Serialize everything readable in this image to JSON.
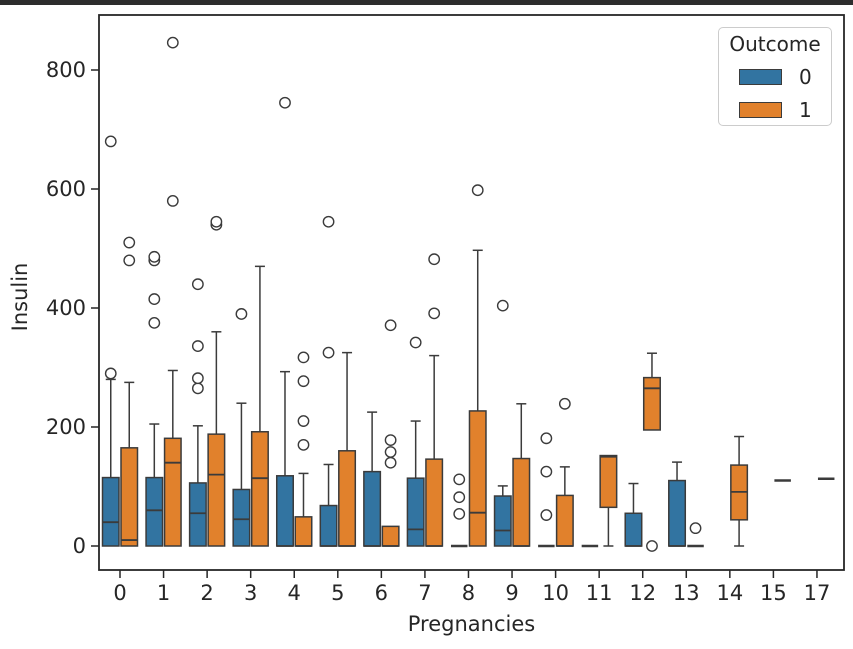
{
  "page": {
    "top_bar_color": "#2d2d2d",
    "background": "#ffffff",
    "text_color": "#262626",
    "edge_color": "#3b3b3b"
  },
  "chart_data": {
    "type": "grouped_boxplot",
    "title": "",
    "xlabel": "Pregnancies",
    "ylabel": "Insulin",
    "categories": [
      "0",
      "1",
      "2",
      "3",
      "4",
      "5",
      "6",
      "7",
      "8",
      "9",
      "10",
      "11",
      "12",
      "13",
      "14",
      "15",
      "17"
    ],
    "y_ticks": [
      0,
      200,
      400,
      600,
      800
    ],
    "ylim": [
      -40,
      892
    ],
    "grid": false,
    "legend": {
      "title": "Outcome",
      "position": "upper right",
      "entries": [
        {
          "label": "0",
          "color": "#3274a1"
        },
        {
          "label": "1",
          "color": "#e1812c"
        }
      ]
    },
    "series": [
      {
        "name": "0",
        "color": "#3274a1",
        "boxes": [
          {
            "q1": 0,
            "median": 40,
            "q3": 115,
            "whisker_low": 0,
            "whisker_high": 280,
            "outliers": [
              290,
              680
            ]
          },
          {
            "q1": 0,
            "median": 60,
            "q3": 115,
            "whisker_low": 0,
            "whisker_high": 205,
            "outliers": [
              375,
              415,
              480,
              486
            ]
          },
          {
            "q1": 0,
            "median": 55,
            "q3": 106,
            "whisker_low": 0,
            "whisker_high": 202,
            "outliers": [
              265,
              282,
              336,
              440
            ]
          },
          {
            "q1": 0,
            "median": 45,
            "q3": 95,
            "whisker_low": 0,
            "whisker_high": 240,
            "outliers": [
              390
            ]
          },
          {
            "q1": 0,
            "median": 0,
            "q3": 118,
            "whisker_low": 0,
            "whisker_high": 293,
            "outliers": [
              745
            ]
          },
          {
            "q1": 0,
            "median": 0,
            "q3": 68,
            "whisker_low": 0,
            "whisker_high": 137,
            "outliers": [
              325,
              545
            ]
          },
          {
            "q1": 0,
            "median": 0,
            "q3": 125,
            "whisker_low": 0,
            "whisker_high": 225,
            "outliers": []
          },
          {
            "q1": 0,
            "median": 28,
            "q3": 114,
            "whisker_low": 0,
            "whisker_high": 210,
            "outliers": [
              342
            ]
          },
          {
            "q1": 0,
            "median": 0,
            "q3": 0,
            "whisker_low": 0,
            "whisker_high": 0,
            "outliers": [
              54,
              82,
              112
            ]
          },
          {
            "q1": 0,
            "median": 26,
            "q3": 84,
            "whisker_low": 0,
            "whisker_high": 101,
            "outliers": [
              404
            ]
          },
          {
            "q1": 0,
            "median": 0,
            "q3": 0,
            "whisker_low": 0,
            "whisker_high": 0,
            "outliers": [
              52,
              125,
              181
            ]
          },
          {
            "q1": 0,
            "median": 0,
            "q3": 0,
            "whisker_low": 0,
            "whisker_high": 0,
            "outliers": []
          },
          {
            "q1": 0,
            "median": 0,
            "q3": 55,
            "whisker_low": 0,
            "whisker_high": 105,
            "outliers": []
          },
          {
            "q1": 0,
            "median": 0,
            "q3": 110,
            "whisker_low": 0,
            "whisker_high": 141,
            "outliers": []
          },
          null,
          null,
          null
        ]
      },
      {
        "name": "1",
        "color": "#e1812c",
        "boxes": [
          {
            "q1": 0,
            "median": 10,
            "q3": 165,
            "whisker_low": 0,
            "whisker_high": 275,
            "outliers": [
              480,
              510
            ]
          },
          {
            "q1": 0,
            "median": 140,
            "q3": 181,
            "whisker_low": 0,
            "whisker_high": 295,
            "outliers": [
              580,
              846
            ]
          },
          {
            "q1": 0,
            "median": 120,
            "q3": 188,
            "whisker_low": 0,
            "whisker_high": 360,
            "outliers": [
              540,
              545
            ]
          },
          {
            "q1": 0,
            "median": 114,
            "q3": 192,
            "whisker_low": 0,
            "whisker_high": 470,
            "outliers": []
          },
          {
            "q1": 0,
            "median": 0,
            "q3": 49,
            "whisker_low": 0,
            "whisker_high": 122,
            "outliers": [
              170,
              210,
              277,
              317
            ]
          },
          {
            "q1": 0,
            "median": 0,
            "q3": 160,
            "whisker_low": 0,
            "whisker_high": 325,
            "outliers": []
          },
          {
            "q1": 0,
            "median": 0,
            "q3": 33,
            "whisker_low": 0,
            "whisker_high": 33,
            "outliers": [
              140,
              158,
              178,
              371
            ]
          },
          {
            "q1": 0,
            "median": 0,
            "q3": 146,
            "whisker_low": 0,
            "whisker_high": 320,
            "outliers": [
              391,
              482
            ]
          },
          {
            "q1": 0,
            "median": 56,
            "q3": 227,
            "whisker_low": 0,
            "whisker_high": 497,
            "outliers": [
              598
            ]
          },
          {
            "q1": 0,
            "median": 0,
            "q3": 147,
            "whisker_low": 0,
            "whisker_high": 239,
            "outliers": []
          },
          {
            "q1": 0,
            "median": 0,
            "q3": 85,
            "whisker_low": 0,
            "whisker_high": 133,
            "outliers": [
              239
            ]
          },
          {
            "q1": 65,
            "median": 150,
            "q3": 152,
            "whisker_low": 0,
            "whisker_high": 152,
            "outliers": []
          },
          {
            "q1": 195,
            "median": 265,
            "q3": 283,
            "whisker_low": 195,
            "whisker_high": 324,
            "outliers": [
              0
            ]
          },
          {
            "q1": 0,
            "median": 0,
            "q3": 0,
            "whisker_low": 0,
            "whisker_high": 0,
            "outliers": [
              30
            ]
          },
          {
            "q1": 44,
            "median": 91,
            "q3": 136,
            "whisker_low": 0,
            "whisker_high": 184,
            "outliers": []
          },
          {
            "q1": 110,
            "median": 110,
            "q3": 110,
            "whisker_low": 110,
            "whisker_high": 110,
            "outliers": []
          },
          {
            "q1": 113,
            "median": 113,
            "q3": 113,
            "whisker_low": 113,
            "whisker_high": 113,
            "outliers": []
          }
        ]
      }
    ]
  }
}
